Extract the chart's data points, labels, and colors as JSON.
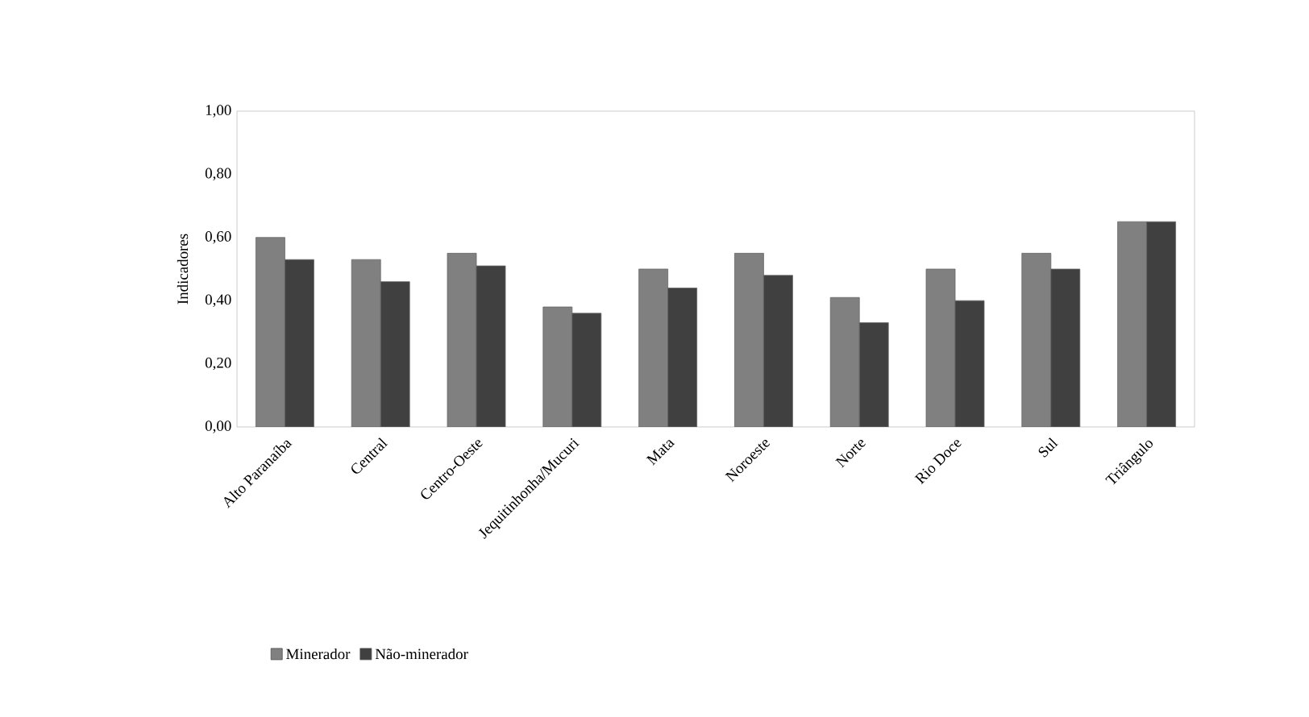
{
  "chart_data": {
    "type": "bar",
    "ylabel": "Indicadores",
    "categories": [
      "Alto Paranaíba",
      "Central",
      "Centro-Oeste",
      "Jequitinhonha/Mucuri",
      "Mata",
      "Noroeste",
      "Norte",
      "Rio Doce",
      "Sul",
      "Triângulo"
    ],
    "series": [
      {
        "name": "Minerador",
        "color": "#808080",
        "values": [
          0.6,
          0.53,
          0.55,
          0.38,
          0.5,
          0.55,
          0.41,
          0.5,
          0.55,
          0.65
        ]
      },
      {
        "name": "Não-minerador",
        "color": "#404040",
        "values": [
          0.53,
          0.46,
          0.51,
          0.36,
          0.44,
          0.48,
          0.33,
          0.4,
          0.5,
          0.65
        ]
      }
    ],
    "ylim": [
      0,
      1
    ],
    "yticks": [
      {
        "value": 0,
        "label": "0,00"
      },
      {
        "value": 0.2,
        "label": "0,20"
      },
      {
        "value": 0.4,
        "label": "0,40"
      },
      {
        "value": 0.6,
        "label": "0,60"
      },
      {
        "value": 0.8,
        "label": "0,80"
      },
      {
        "value": 1,
        "label": "1,00"
      }
    ],
    "grid": false,
    "legend": "bottom"
  }
}
